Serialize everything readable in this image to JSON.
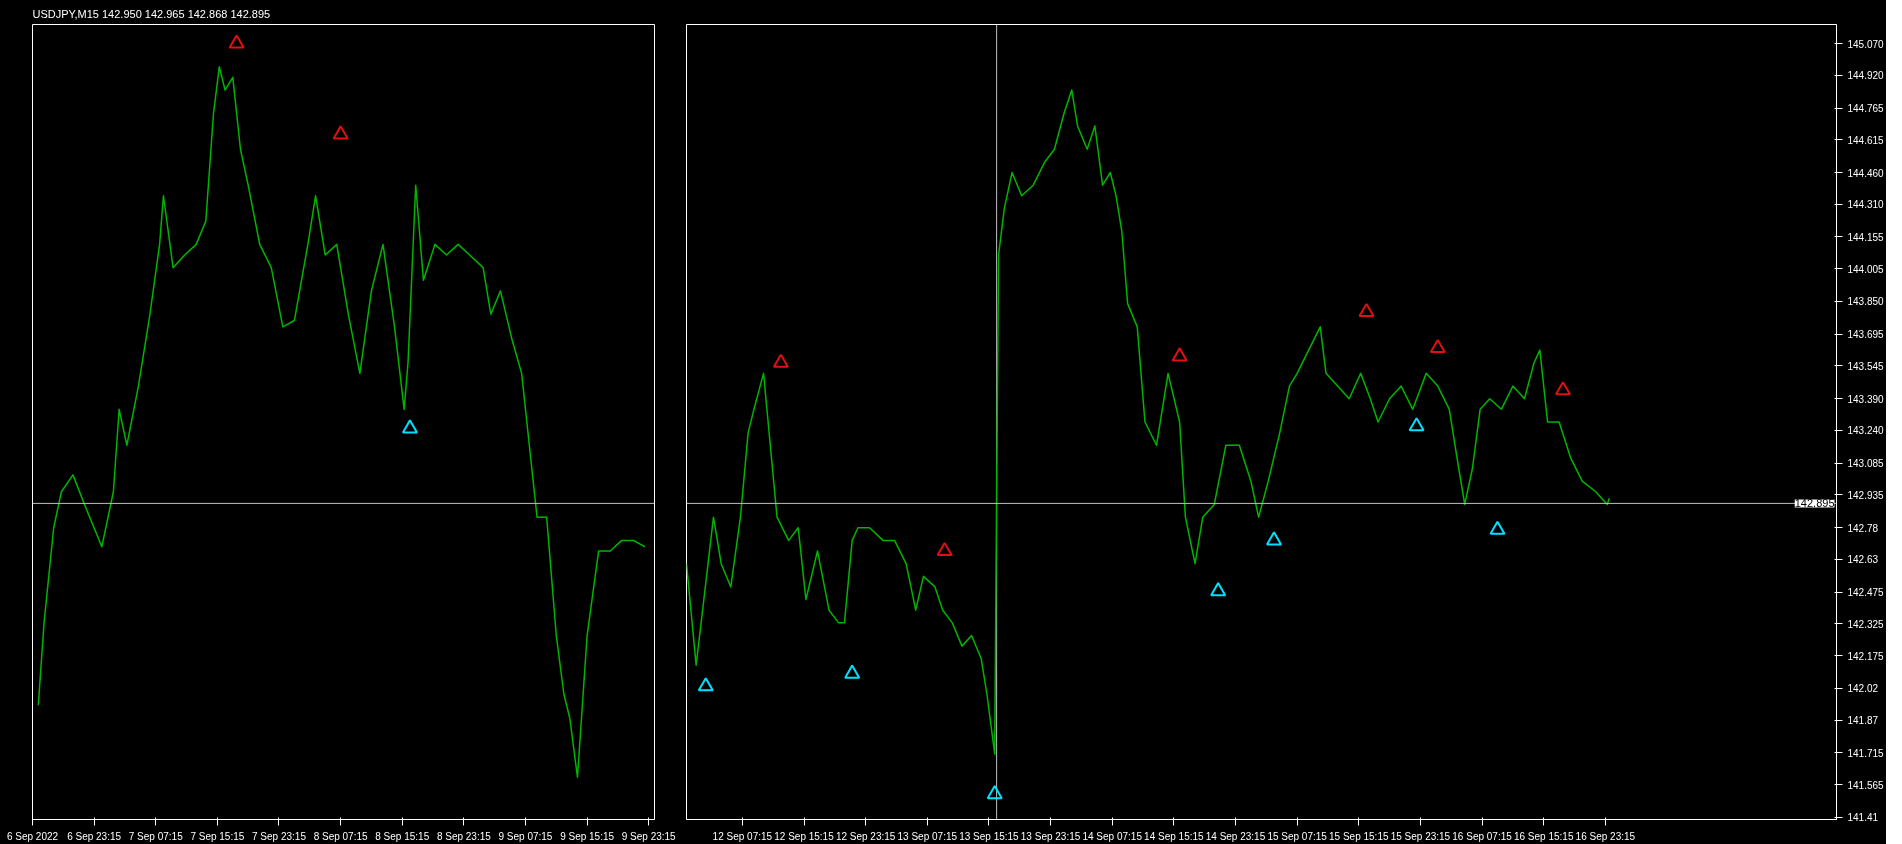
{
  "chart_data": [
    {
      "type": "line",
      "title": "USDJPY,M15  142.950 142.965 142.868 142.895",
      "xlim": [
        "2022-09-06T15:15",
        "2022-09-10T00:00"
      ],
      "ylim": [
        141.4,
        145.16
      ],
      "tick_labels": "x",
      "ref_lines": [
        {
          "axis": "y",
          "value": 142.895,
          "color": "#c0c0c0"
        }
      ],
      "xticks": [
        {
          "value": "2022-09-06T15:15",
          "label": "6 Sep 2022"
        },
        {
          "value": "2022-09-06T23:15",
          "label": "6 Sep 23:15"
        },
        {
          "value": "2022-09-07T07:15",
          "label": "7 Sep 07:15"
        },
        {
          "value": "2022-09-07T15:15",
          "label": "7 Sep 15:15"
        },
        {
          "value": "2022-09-07T23:15",
          "label": "7 Sep 23:15"
        },
        {
          "value": "2022-09-08T07:15",
          "label": "8 Sep 07:15"
        },
        {
          "value": "2022-09-08T15:15",
          "label": "8 Sep 15:15"
        },
        {
          "value": "2022-09-08T23:15",
          "label": "8 Sep 23:15"
        },
        {
          "value": "2022-09-09T07:15",
          "label": "9 Sep 07:15"
        },
        {
          "value": "2022-09-09T15:15",
          "label": "9 Sep 15:15"
        },
        {
          "value": "2022-09-09T23:15",
          "label": "9 Sep 23:15"
        }
      ],
      "series": [
        {
          "color": "#00b400",
          "x": [
            "2022-09-06T16:00",
            "2022-09-06T16:45",
            "2022-09-06T18:00",
            "2022-09-06T19:00",
            "2022-09-06T20:30",
            "2022-09-06T22:00",
            "2022-09-07T00:15",
            "2022-09-07T01:45",
            "2022-09-07T02:30",
            "2022-09-07T03:30",
            "2022-09-07T05:00",
            "2022-09-07T06:30",
            "2022-09-07T07:45",
            "2022-09-07T08:15",
            "2022-09-07T09:30",
            "2022-09-07T11:00",
            "2022-09-07T12:30",
            "2022-09-07T13:45",
            "2022-09-07T14:45",
            "2022-09-07T15:30",
            "2022-09-07T16:15",
            "2022-09-07T17:15",
            "2022-09-07T18:15",
            "2022-09-07T19:15",
            "2022-09-07T20:45",
            "2022-09-07T22:15",
            "2022-09-07T23:45",
            "2022-09-08T01:15",
            "2022-09-08T03:00",
            "2022-09-08T04:00",
            "2022-09-08T05:15",
            "2022-09-08T06:45",
            "2022-09-08T08:15",
            "2022-09-08T09:45",
            "2022-09-08T11:15",
            "2022-09-08T12:45",
            "2022-09-08T14:15",
            "2022-09-08T15:30",
            "2022-09-08T16:00",
            "2022-09-08T17:00",
            "2022-09-08T18:00",
            "2022-09-08T19:30",
            "2022-09-08T21:00",
            "2022-09-08T22:30",
            "2022-09-09T00:00",
            "2022-09-09T01:45",
            "2022-09-09T02:45",
            "2022-09-09T04:00",
            "2022-09-09T05:30",
            "2022-09-09T06:45",
            "2022-09-09T07:45",
            "2022-09-09T08:45",
            "2022-09-09T10:00",
            "2022-09-09T11:15",
            "2022-09-09T12:15",
            "2022-09-09T13:00",
            "2022-09-09T14:00",
            "2022-09-09T15:15",
            "2022-09-09T16:45",
            "2022-09-09T18:15",
            "2022-09-09T19:45",
            "2022-09-09T21:15",
            "2022-09-09T22:45"
          ],
          "values": [
            141.94,
            142.33,
            142.78,
            142.95,
            143.03,
            142.89,
            142.69,
            142.95,
            143.34,
            143.17,
            143.45,
            143.79,
            144.12,
            144.35,
            144.01,
            144.07,
            144.12,
            144.23,
            144.74,
            144.96,
            144.85,
            144.91,
            144.57,
            144.4,
            144.12,
            144.01,
            143.73,
            143.76,
            144.12,
            144.35,
            144.07,
            144.12,
            143.79,
            143.51,
            143.9,
            144.12,
            143.73,
            143.34,
            143.56,
            144.4,
            143.95,
            144.12,
            144.07,
            144.12,
            144.07,
            144.01,
            143.79,
            143.9,
            143.67,
            143.51,
            143.17,
            142.83,
            142.83,
            142.27,
            141.99,
            141.88,
            141.6,
            142.27,
            142.67,
            142.67,
            142.72,
            142.72,
            142.69
          ]
        },
        {
          "type": "scatter",
          "marker": "triangle",
          "color": "#e01010",
          "x": [
            "2022-09-07T17:45",
            "2022-09-08T07:15"
          ],
          "values": [
            145.07,
            144.64
          ]
        },
        {
          "type": "scatter",
          "marker": "triangle",
          "color": "#00e0ff",
          "x": [
            "2022-09-08T16:15"
          ],
          "values": [
            143.25
          ]
        }
      ]
    },
    {
      "type": "line",
      "xlim": [
        "2022-09-12T00:00",
        "2022-09-18T05:15"
      ],
      "ylim": [
        141.4,
        145.16
      ],
      "xticks": [
        {
          "value": "2022-09-12T07:15",
          "label": "12 Sep 07:15"
        },
        {
          "value": "2022-09-12T15:15",
          "label": "12 Sep 15:15"
        },
        {
          "value": "2022-09-12T23:15",
          "label": "12 Sep 23:15"
        },
        {
          "value": "2022-09-13T07:15",
          "label": "13 Sep 07:15"
        },
        {
          "value": "2022-09-13T15:15",
          "label": "13 Sep 15:15"
        },
        {
          "value": "2022-09-13T23:15",
          "label": "13 Sep 23:15"
        },
        {
          "value": "2022-09-14T07:15",
          "label": "14 Sep 07:15"
        },
        {
          "value": "2022-09-14T15:15",
          "label": "14 Sep 15:15"
        },
        {
          "value": "2022-09-14T23:15",
          "label": "14 Sep 23:15"
        },
        {
          "value": "2022-09-15T07:15",
          "label": "15 Sep 07:15"
        },
        {
          "value": "2022-09-15T15:15",
          "label": "15 Sep 15:15"
        },
        {
          "value": "2022-09-15T23:15",
          "label": "15 Sep 23:15"
        },
        {
          "value": "2022-09-16T07:15",
          "label": "16 Sep 07:15"
        },
        {
          "value": "2022-09-16T15:15",
          "label": "16 Sep 15:15"
        },
        {
          "value": "2022-09-16T23:15",
          "label": "16 Sep 23:15"
        }
      ],
      "yticks": [
        141.41,
        141.565,
        141.715,
        141.87,
        142.02,
        142.175,
        142.325,
        142.475,
        142.63,
        142.78,
        {
          "value": 142.935,
          "label": "142.935"
        },
        143.085,
        {
          "value": 143.24,
          "label": "143.240"
        },
        {
          "value": 143.39,
          "label": "143.390"
        },
        143.545,
        143.695,
        {
          "value": 143.85,
          "label": "143.850"
        },
        144.005,
        144.155,
        {
          "value": 144.31,
          "label": "144.310"
        },
        {
          "value": 144.46,
          "label": "144.460"
        },
        144.615,
        144.765,
        {
          "value": 144.92,
          "label": "144.920"
        },
        {
          "value": 145.07,
          "label": "145.070"
        }
      ],
      "ref_lines": [
        {
          "axis": "y",
          "value": 142.895,
          "label": "142.895",
          "color": "#c0c0c0"
        },
        {
          "axis": "x",
          "value": "2022-09-13T16:15",
          "color": "#c0c0c0"
        }
      ],
      "series": [
        {
          "color": "#00b400",
          "x": [
            "2022-09-12T00:00",
            "2022-09-12T01:15",
            "2022-09-12T02:15",
            "2022-09-12T03:30",
            "2022-09-12T04:30",
            "2022-09-12T05:45",
            "2022-09-12T07:00",
            "2022-09-12T08:00",
            "2022-09-12T08:45",
            "2022-09-12T10:00",
            "2022-09-12T11:45",
            "2022-09-12T13:15",
            "2022-09-12T14:30",
            "2022-09-12T15:30",
            "2022-09-12T17:00",
            "2022-09-12T18:30",
            "2022-09-12T19:45",
            "2022-09-12T20:30",
            "2022-09-12T21:30",
            "2022-09-12T22:15",
            "2022-09-12T23:45",
            "2022-09-13T01:30",
            "2022-09-13T03:00",
            "2022-09-13T04:30",
            "2022-09-13T05:45",
            "2022-09-13T06:45",
            "2022-09-13T08:15",
            "2022-09-13T09:15",
            "2022-09-13T10:30",
            "2022-09-13T11:45",
            "2022-09-13T13:00",
            "2022-09-13T14:15",
            "2022-09-13T15:00",
            "2022-09-13T16:00",
            "2022-09-13T16:15",
            "2022-09-13T16:30",
            "2022-09-13T17:15",
            "2022-09-13T18:15",
            "2022-09-13T19:30",
            "2022-09-13T21:00",
            "2022-09-13T22:30",
            "2022-09-13T23:45",
            "2022-09-14T01:00",
            "2022-09-14T02:00",
            "2022-09-14T02:45",
            "2022-09-14T04:00",
            "2022-09-14T05:00",
            "2022-09-14T06:00",
            "2022-09-14T07:00",
            "2022-09-14T07:45",
            "2022-09-14T08:30",
            "2022-09-14T09:15",
            "2022-09-14T10:30",
            "2022-09-14T11:30",
            "2022-09-14T13:00",
            "2022-09-14T14:30",
            "2022-09-14T16:00",
            "2022-09-14T16:45",
            "2022-09-14T18:00",
            "2022-09-14T19:00",
            "2022-09-14T20:30",
            "2022-09-14T22:00",
            "2022-09-14T23:45",
            "2022-09-15T01:15",
            "2022-09-15T02:15",
            "2022-09-15T03:30",
            "2022-09-15T05:00",
            "2022-09-15T06:15",
            "2022-09-15T07:15",
            "2022-09-15T08:45",
            "2022-09-15T10:15",
            "2022-09-15T11:00",
            "2022-09-15T12:30",
            "2022-09-15T14:00",
            "2022-09-15T15:30",
            "2022-09-15T16:45",
            "2022-09-15T17:45",
            "2022-09-15T19:15",
            "2022-09-15T20:45",
            "2022-09-15T22:15",
            "2022-09-16T00:00",
            "2022-09-16T01:30",
            "2022-09-16T03:00",
            "2022-09-16T04:00",
            "2022-09-16T05:00",
            "2022-09-16T06:00",
            "2022-09-16T07:00",
            "2022-09-16T08:15",
            "2022-09-16T09:45",
            "2022-09-16T11:15",
            "2022-09-16T12:45",
            "2022-09-16T14:00",
            "2022-09-16T14:45",
            "2022-09-16T15:45",
            "2022-09-16T17:15",
            "2022-09-16T18:45",
            "2022-09-16T20:15",
            "2022-09-16T22:00",
            "2022-09-16T23:30",
            "2022-09-16T23:45"
          ],
          "values": [
            142.61,
            142.13,
            142.44,
            142.83,
            142.61,
            142.5,
            142.83,
            143.23,
            143.34,
            143.51,
            142.83,
            142.72,
            142.78,
            142.44,
            142.67,
            142.39,
            142.33,
            142.33,
            142.72,
            142.78,
            142.78,
            142.72,
            142.72,
            142.61,
            142.39,
            142.55,
            142.5,
            142.39,
            142.33,
            142.22,
            142.27,
            142.16,
            141.99,
            141.71,
            142.95,
            144.07,
            144.29,
            144.46,
            144.35,
            144.4,
            144.51,
            144.57,
            144.74,
            144.85,
            144.68,
            144.57,
            144.68,
            144.4,
            144.46,
            144.35,
            144.18,
            143.84,
            143.73,
            143.28,
            143.17,
            143.51,
            143.28,
            142.83,
            142.61,
            142.83,
            142.89,
            143.17,
            143.17,
            143.0,
            142.83,
            143.0,
            143.23,
            143.45,
            143.51,
            143.62,
            143.73,
            143.51,
            143.45,
            143.39,
            143.51,
            143.39,
            143.28,
            143.39,
            143.45,
            143.34,
            143.51,
            143.45,
            143.34,
            143.11,
            142.89,
            143.06,
            143.34,
            143.39,
            143.34,
            143.45,
            143.39,
            143.56,
            143.62,
            143.28,
            143.28,
            143.11,
            143.0,
            142.95,
            142.89,
            142.92
          ]
        },
        {
          "type": "scatter",
          "marker": "triangle",
          "color": "#e01010",
          "x": [
            "2022-09-12T12:15",
            "2022-09-13T09:30",
            "2022-09-14T16:00",
            "2022-09-15T16:15",
            "2022-09-16T01:30",
            "2022-09-16T17:45"
          ],
          "values": [
            143.56,
            142.67,
            143.59,
            143.8,
            143.63,
            143.43
          ]
        },
        {
          "type": "scatter",
          "marker": "triangle",
          "color": "#00e0ff",
          "x": [
            "2022-09-12T02:30",
            "2022-09-12T21:30",
            "2022-09-13T16:00",
            "2022-09-14T21:00",
            "2022-09-15T04:15",
            "2022-09-15T22:45",
            "2022-09-16T09:15"
          ],
          "values": [
            142.03,
            142.09,
            141.52,
            142.48,
            142.72,
            143.26,
            142.77
          ]
        }
      ]
    }
  ]
}
